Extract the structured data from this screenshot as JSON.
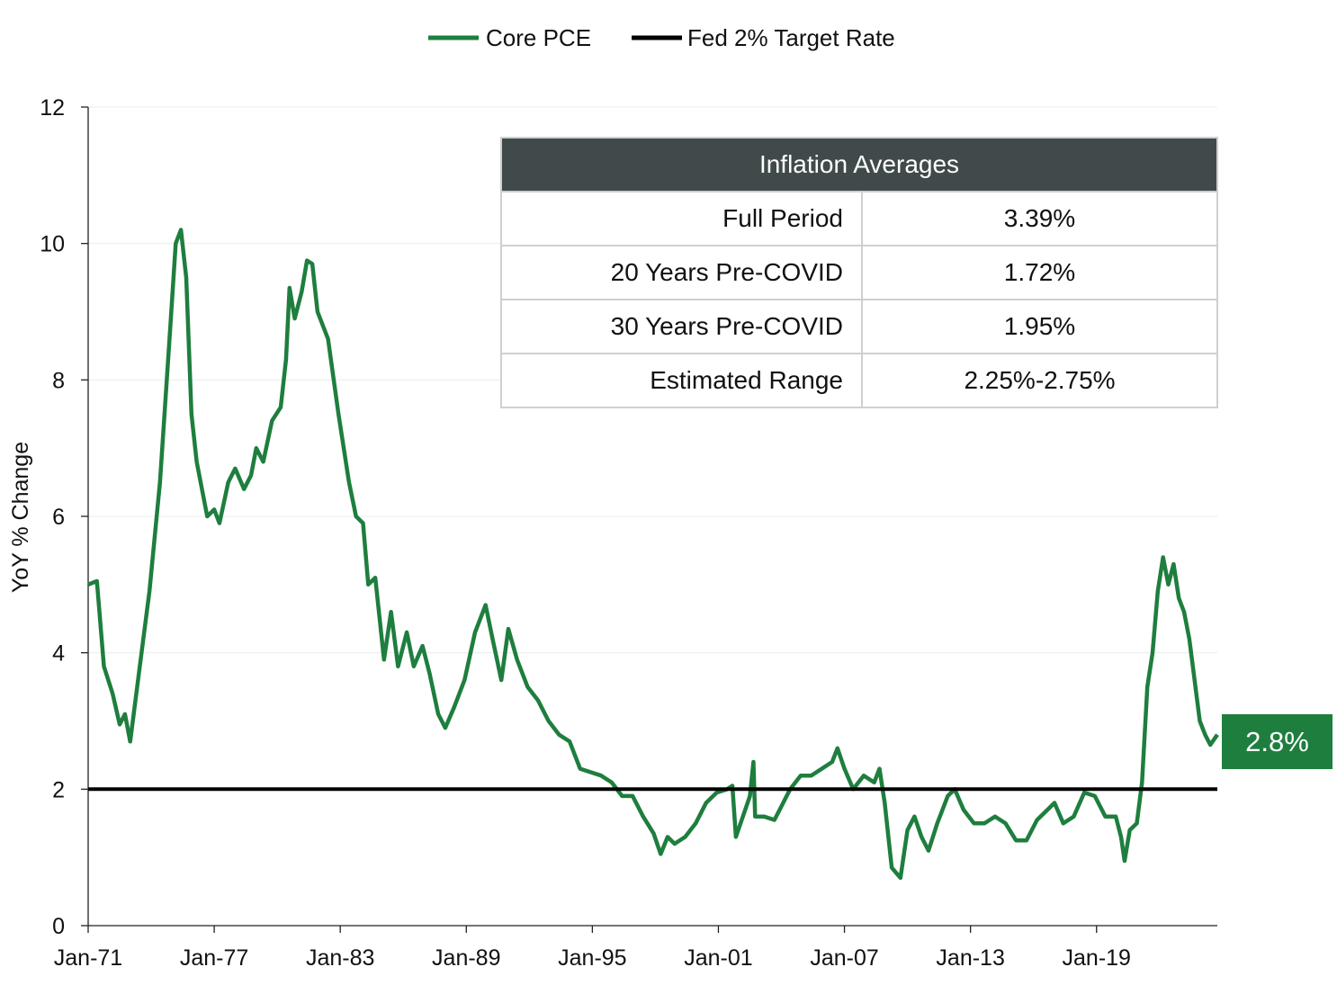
{
  "chart_data": {
    "type": "line",
    "title": "",
    "ylabel": "YoY % Change",
    "xlabel": "",
    "ylim": [
      0,
      12
    ],
    "yticks": [
      "0",
      "2",
      "4",
      "6",
      "8",
      "10",
      "12"
    ],
    "xticks": [
      "Jan-71",
      "Jan-77",
      "Jan-83",
      "Jan-89",
      "Jan-95",
      "Jan-01",
      "Jan-07",
      "Jan-13",
      "Jan-19"
    ],
    "legend": {
      "placement": "top-center"
    },
    "grid": "horizontal-light",
    "series": [
      {
        "name": "Core PCE",
        "color": "#1e7e3e",
        "points": [
          [
            "1971-01",
            5.0
          ],
          [
            "1971-06",
            5.05
          ],
          [
            "1971-10",
            3.8
          ],
          [
            "1972-03",
            3.4
          ],
          [
            "1972-07",
            2.95
          ],
          [
            "1972-10",
            3.1
          ],
          [
            "1973-01",
            2.7
          ],
          [
            "1973-06",
            3.7
          ],
          [
            "1973-12",
            4.9
          ],
          [
            "1974-06",
            6.5
          ],
          [
            "1974-12",
            8.8
          ],
          [
            "1975-03",
            10.0
          ],
          [
            "1975-06",
            10.2
          ],
          [
            "1975-09",
            9.5
          ],
          [
            "1975-12",
            7.5
          ],
          [
            "1976-03",
            6.8
          ],
          [
            "1976-09",
            6.0
          ],
          [
            "1977-01",
            6.1
          ],
          [
            "1977-04",
            5.9
          ],
          [
            "1977-09",
            6.5
          ],
          [
            "1978-01",
            6.7
          ],
          [
            "1978-06",
            6.4
          ],
          [
            "1978-10",
            6.6
          ],
          [
            "1979-01",
            7.0
          ],
          [
            "1979-05",
            6.8
          ],
          [
            "1979-10",
            7.4
          ],
          [
            "1980-03",
            7.6
          ],
          [
            "1980-06",
            8.3
          ],
          [
            "1980-08",
            9.35
          ],
          [
            "1980-11",
            8.9
          ],
          [
            "1981-03",
            9.3
          ],
          [
            "1981-06",
            9.75
          ],
          [
            "1981-09",
            9.7
          ],
          [
            "1981-12",
            9.0
          ],
          [
            "1982-06",
            8.6
          ],
          [
            "1982-12",
            7.5
          ],
          [
            "1983-06",
            6.5
          ],
          [
            "1983-10",
            6.0
          ],
          [
            "1984-02",
            5.9
          ],
          [
            "1984-05",
            5.0
          ],
          [
            "1984-09",
            5.1
          ],
          [
            "1985-02",
            3.9
          ],
          [
            "1985-06",
            4.6
          ],
          [
            "1985-10",
            3.8
          ],
          [
            "1986-03",
            4.3
          ],
          [
            "1986-07",
            3.8
          ],
          [
            "1986-12",
            4.1
          ],
          [
            "1987-04",
            3.7
          ],
          [
            "1987-09",
            3.1
          ],
          [
            "1988-01",
            2.9
          ],
          [
            "1988-06",
            3.2
          ],
          [
            "1988-12",
            3.6
          ],
          [
            "1989-06",
            4.3
          ],
          [
            "1989-12",
            4.7
          ],
          [
            "1990-04",
            4.2
          ],
          [
            "1990-09",
            3.6
          ],
          [
            "1991-01",
            4.35
          ],
          [
            "1991-06",
            3.9
          ],
          [
            "1991-12",
            3.5
          ],
          [
            "1992-06",
            3.3
          ],
          [
            "1992-12",
            3.0
          ],
          [
            "1993-06",
            2.8
          ],
          [
            "1993-12",
            2.7
          ],
          [
            "1994-06",
            2.3
          ],
          [
            "1994-12",
            2.25
          ],
          [
            "1995-06",
            2.2
          ],
          [
            "1995-12",
            2.1
          ],
          [
            "1996-06",
            1.9
          ],
          [
            "1996-12",
            1.9
          ],
          [
            "1997-06",
            1.6
          ],
          [
            "1997-12",
            1.35
          ],
          [
            "1998-04",
            1.05
          ],
          [
            "1998-08",
            1.3
          ],
          [
            "1998-12",
            1.2
          ],
          [
            "1999-06",
            1.3
          ],
          [
            "1999-12",
            1.5
          ],
          [
            "2000-06",
            1.8
          ],
          [
            "2000-12",
            1.95
          ],
          [
            "2001-06",
            2.0
          ],
          [
            "2001-09",
            2.05
          ],
          [
            "2001-11",
            1.3
          ],
          [
            "2002-03",
            1.6
          ],
          [
            "2002-07",
            1.9
          ],
          [
            "2002-09",
            2.4
          ],
          [
            "2002-10",
            1.6
          ],
          [
            "2003-03",
            1.6
          ],
          [
            "2003-09",
            1.55
          ],
          [
            "2003-12",
            1.7
          ],
          [
            "2004-06",
            2.0
          ],
          [
            "2004-12",
            2.2
          ],
          [
            "2005-06",
            2.2
          ],
          [
            "2005-12",
            2.3
          ],
          [
            "2006-06",
            2.4
          ],
          [
            "2006-09",
            2.6
          ],
          [
            "2007-01",
            2.3
          ],
          [
            "2007-06",
            2.0
          ],
          [
            "2007-12",
            2.2
          ],
          [
            "2008-06",
            2.1
          ],
          [
            "2008-09",
            2.3
          ],
          [
            "2008-12",
            1.8
          ],
          [
            "2009-04",
            0.85
          ],
          [
            "2009-09",
            0.7
          ],
          [
            "2010-01",
            1.4
          ],
          [
            "2010-05",
            1.6
          ],
          [
            "2010-09",
            1.3
          ],
          [
            "2011-01",
            1.1
          ],
          [
            "2011-06",
            1.5
          ],
          [
            "2011-12",
            1.9
          ],
          [
            "2012-04",
            2.0
          ],
          [
            "2012-09",
            1.7
          ],
          [
            "2013-03",
            1.5
          ],
          [
            "2013-09",
            1.5
          ],
          [
            "2014-03",
            1.6
          ],
          [
            "2014-09",
            1.5
          ],
          [
            "2015-03",
            1.25
          ],
          [
            "2015-09",
            1.25
          ],
          [
            "2016-03",
            1.55
          ],
          [
            "2016-09",
            1.7
          ],
          [
            "2017-01",
            1.8
          ],
          [
            "2017-06",
            1.5
          ],
          [
            "2017-12",
            1.6
          ],
          [
            "2018-06",
            1.95
          ],
          [
            "2018-12",
            1.9
          ],
          [
            "2019-06",
            1.6
          ],
          [
            "2019-12",
            1.6
          ],
          [
            "2020-03",
            1.3
          ],
          [
            "2020-05",
            0.95
          ],
          [
            "2020-08",
            1.4
          ],
          [
            "2020-12",
            1.5
          ],
          [
            "2021-03",
            2.1
          ],
          [
            "2021-06",
            3.5
          ],
          [
            "2021-09",
            4.0
          ],
          [
            "2021-12",
            4.9
          ],
          [
            "2022-03",
            5.4
          ],
          [
            "2022-06",
            5.0
          ],
          [
            "2022-09",
            5.3
          ],
          [
            "2022-12",
            4.8
          ],
          [
            "2023-03",
            4.6
          ],
          [
            "2023-06",
            4.2
          ],
          [
            "2023-09",
            3.6
          ],
          [
            "2023-12",
            3.0
          ],
          [
            "2024-03",
            2.8
          ],
          [
            "2024-06",
            2.65
          ],
          [
            "2024-10",
            2.8
          ]
        ]
      },
      {
        "name": "Fed 2% Target Rate",
        "color": "#000000",
        "points": [
          [
            "1971-01",
            2
          ],
          [
            "2024-10",
            2
          ]
        ]
      }
    ],
    "table": {
      "title": "Inflation Averages",
      "rows": [
        {
          "label": "Full Period",
          "value": "3.39%"
        },
        {
          "label": "20 Years Pre-COVID",
          "value": "1.72%"
        },
        {
          "label": "30 Years Pre-COVID",
          "value": "1.95%"
        },
        {
          "label": "Estimated Range",
          "value": "2.25%-2.75%"
        }
      ]
    },
    "current_value_label": "2.8%"
  }
}
